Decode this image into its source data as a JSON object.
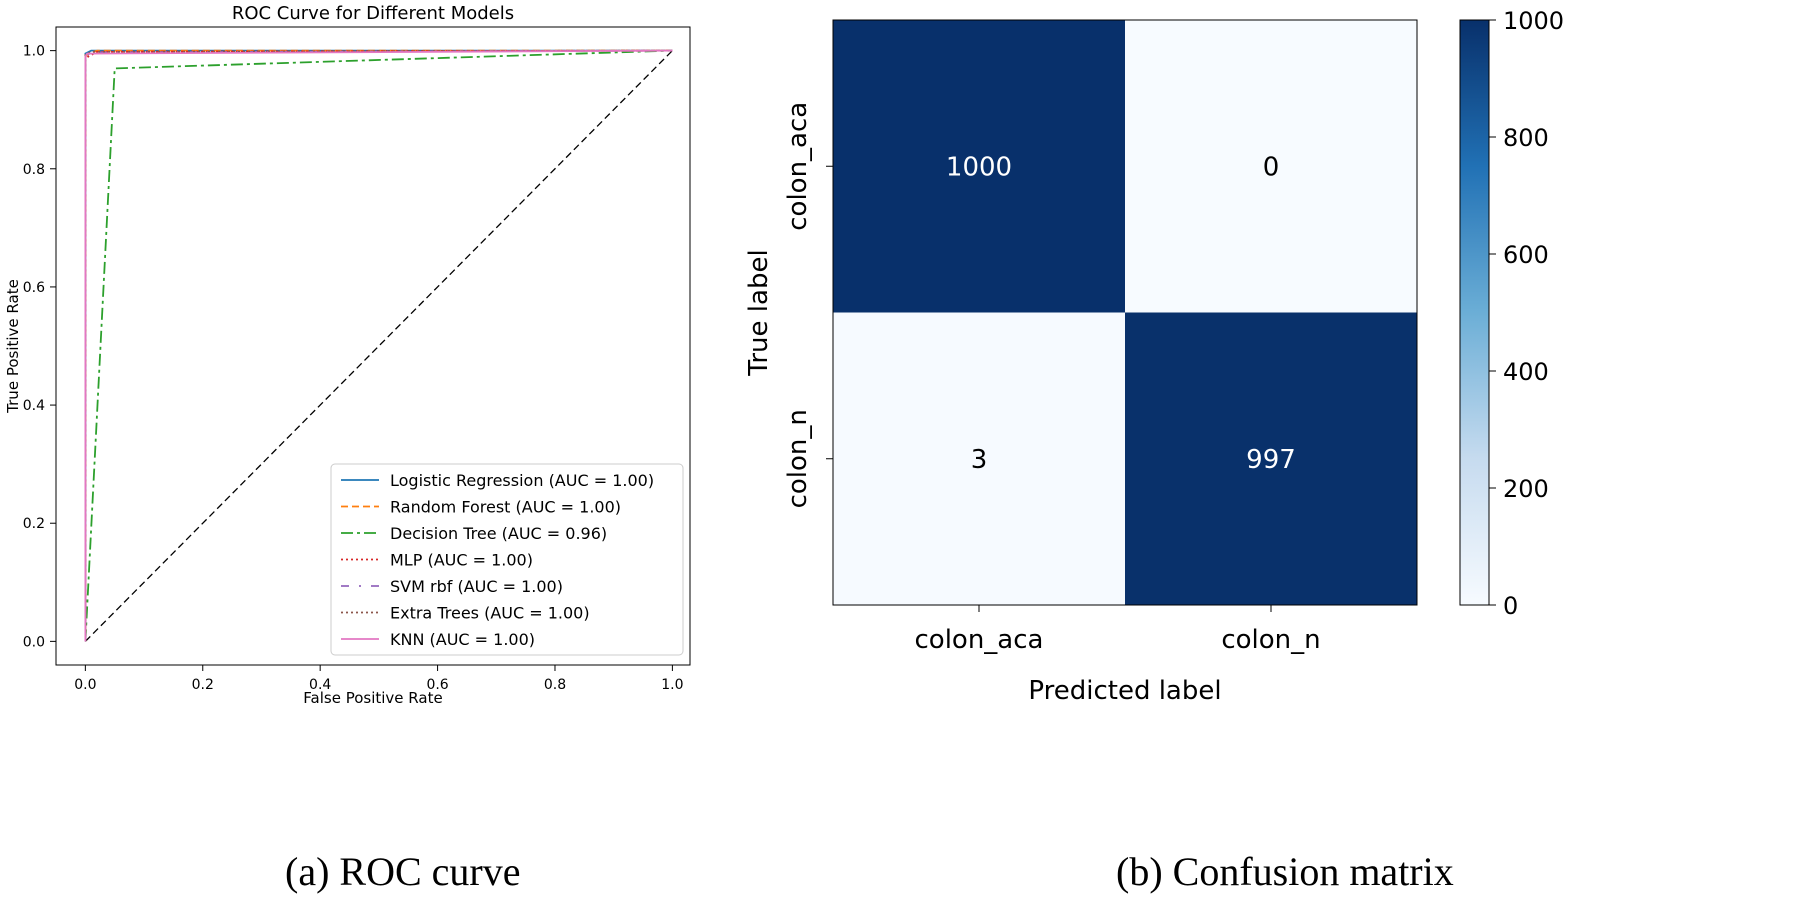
{
  "chart_data": [
    {
      "type": "line",
      "title": "ROC Curve for Different Models",
      "xlabel": "False Positive Rate",
      "ylabel": "True Positive Rate",
      "xlim": [
        -0.05,
        1.03
      ],
      "ylim": [
        -0.04,
        1.04
      ],
      "xticks": [
        "0.0",
        "0.2",
        "0.4",
        "0.6",
        "0.8",
        "1.0"
      ],
      "yticks": [
        "0.0",
        "0.2",
        "0.4",
        "0.6",
        "0.8",
        "1.0"
      ],
      "grid": false,
      "legend_position": "bottom-right",
      "series": [
        {
          "name": "Logistic Regression (AUC = 1.00)",
          "color": "#1f77b4",
          "dash": "solid",
          "x": [
            0,
            0,
            0.01,
            1
          ],
          "y": [
            0,
            0.995,
            1.0,
            1.0
          ]
        },
        {
          "name": "Random Forest (AUC = 1.00)",
          "color": "#ff7f0e",
          "dash": "dashed",
          "x": [
            0,
            0,
            0.005,
            0.02,
            1
          ],
          "y": [
            0,
            0.99,
            0.995,
            1.0,
            1.0
          ]
        },
        {
          "name": "Decision Tree (AUC = 0.96)",
          "color": "#2ca02c",
          "dash": "dashdot",
          "x": [
            0,
            0.05,
            1
          ],
          "y": [
            0,
            0.97,
            1.0
          ]
        },
        {
          "name": "MLP (AUC = 1.00)",
          "color": "#d62728",
          "dash": "dotted",
          "x": [
            0,
            0,
            0.005,
            0.02,
            1
          ],
          "y": [
            0,
            0.985,
            0.99,
            0.998,
            1.0
          ]
        },
        {
          "name": "SVM rbf (AUC = 1.00)",
          "color": "#9467bd",
          "dash": "loosedashdot",
          "x": [
            0,
            0,
            0.01,
            1
          ],
          "y": [
            0,
            0.99,
            0.997,
            1.0
          ]
        },
        {
          "name": "Extra Trees (AUC = 1.00)",
          "color": "#8c564b",
          "dash": "dotted",
          "x": [
            0,
            0,
            0.01,
            1
          ],
          "y": [
            0,
            0.993,
            0.998,
            1.0
          ]
        },
        {
          "name": "KNN (AUC = 1.00)",
          "color": "#e377c2",
          "dash": "solid",
          "x": [
            0,
            0,
            0.003,
            1
          ],
          "y": [
            0,
            0.99,
            0.995,
            1.0
          ]
        }
      ],
      "reference_line": {
        "x": [
          0,
          1
        ],
        "y": [
          0,
          1
        ],
        "color": "#000000",
        "dash": "dashed"
      },
      "caption": "(a) ROC curve"
    },
    {
      "type": "heatmap",
      "xlabel": "Predicted label",
      "ylabel": "True label",
      "x_categories": [
        "colon_aca",
        "colon_n"
      ],
      "y_categories": [
        "colon_aca",
        "colon_n"
      ],
      "values": [
        [
          1000,
          0
        ],
        [
          3,
          997
        ]
      ],
      "colorbar": {
        "min": 0,
        "max": 1000,
        "ticks": [
          "0",
          "200",
          "400",
          "600",
          "800",
          "1000"
        ],
        "colormap": "Blues",
        "low_color": "#f7fbff",
        "high_color": "#08306b"
      },
      "caption": "(b) Confusion matrix"
    }
  ]
}
